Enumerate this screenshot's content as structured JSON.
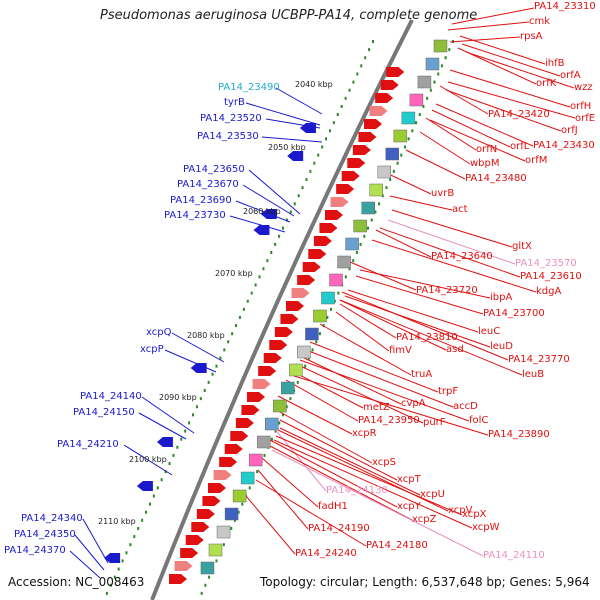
{
  "title": "Pseudomonas aeruginosa UCBPP-PA14, complete genome",
  "footer": {
    "accession": "Accession: NC_008463",
    "topology": "Topology: circular; Length: 6,537,648 bp; Genes: 5,964"
  },
  "colors": {
    "left_label": "#1a1acc",
    "left_label_highlight": "#22aacc",
    "right_label": "#e01010",
    "right_label_light": "#e890c0",
    "backbone": "#777777",
    "tick": "#2a8a2a"
  },
  "scale_labels": [
    "2040 kbp",
    "2050 kbp",
    "2060 kbp",
    "2070 kbp",
    "2080 kbp",
    "2090 kbp",
    "2100 kbp",
    "2110 kbp"
  ],
  "left_labels": [
    {
      "text": "PA14_23490",
      "color": "highlight"
    },
    {
      "text": "tyrB",
      "color": "normal"
    },
    {
      "text": "PA14_23520",
      "color": "normal"
    },
    {
      "text": "PA14_23530",
      "color": "normal"
    },
    {
      "text": "PA14_23650",
      "color": "normal"
    },
    {
      "text": "PA14_23670",
      "color": "normal"
    },
    {
      "text": "PA14_23690",
      "color": "normal"
    },
    {
      "text": "PA14_23730",
      "color": "normal"
    },
    {
      "text": "xcpQ",
      "color": "normal"
    },
    {
      "text": "xcpP",
      "color": "normal"
    },
    {
      "text": "PA14_24140",
      "color": "normal"
    },
    {
      "text": "PA14_24150",
      "color": "normal"
    },
    {
      "text": "PA14_24210",
      "color": "normal"
    },
    {
      "text": "PA14_24340",
      "color": "normal"
    },
    {
      "text": "PA14_24350",
      "color": "normal"
    },
    {
      "text": "PA14_24370",
      "color": "normal"
    }
  ],
  "right_labels": [
    {
      "text": "PA14_23310",
      "color": "normal"
    },
    {
      "text": "cmk",
      "color": "normal"
    },
    {
      "text": "rpsA",
      "color": "normal"
    },
    {
      "text": "ihfB",
      "color": "normal"
    },
    {
      "text": "orfA",
      "color": "normal"
    },
    {
      "text": "orfK",
      "color": "normal"
    },
    {
      "text": "wzz",
      "color": "normal"
    },
    {
      "text": "orfH",
      "color": "normal"
    },
    {
      "text": "PA14_23420",
      "color": "normal"
    },
    {
      "text": "orfE",
      "color": "normal"
    },
    {
      "text": "orfJ",
      "color": "normal"
    },
    {
      "text": "orfN",
      "color": "normal"
    },
    {
      "text": "orfL",
      "color": "normal"
    },
    {
      "text": "PA14_23430",
      "color": "normal"
    },
    {
      "text": "orfM",
      "color": "normal"
    },
    {
      "text": "wbpM",
      "color": "normal"
    },
    {
      "text": "PA14_23480",
      "color": "normal"
    },
    {
      "text": "uvrB",
      "color": "normal"
    },
    {
      "text": "act",
      "color": "normal"
    },
    {
      "text": "gltX",
      "color": "normal"
    },
    {
      "text": "PA14_23640",
      "color": "normal"
    },
    {
      "text": "PA14_23570",
      "color": "light"
    },
    {
      "text": "PA14_23610",
      "color": "normal"
    },
    {
      "text": "kdgA",
      "color": "normal"
    },
    {
      "text": "PA14_23720",
      "color": "normal"
    },
    {
      "text": "ibpA",
      "color": "normal"
    },
    {
      "text": "PA14_23700",
      "color": "normal"
    },
    {
      "text": "leuC",
      "color": "normal"
    },
    {
      "text": "PA14_23810",
      "color": "normal"
    },
    {
      "text": "leuD",
      "color": "normal"
    },
    {
      "text": "fimV",
      "color": "normal"
    },
    {
      "text": "asd",
      "color": "normal"
    },
    {
      "text": "PA14_23770",
      "color": "normal"
    },
    {
      "text": "leuB",
      "color": "normal"
    },
    {
      "text": "truA",
      "color": "normal"
    },
    {
      "text": "trpF",
      "color": "normal"
    },
    {
      "text": "cvpA",
      "color": "normal"
    },
    {
      "text": "accD",
      "color": "normal"
    },
    {
      "text": "metZ",
      "color": "normal"
    },
    {
      "text": "PA14_23950",
      "color": "normal"
    },
    {
      "text": "purF",
      "color": "normal"
    },
    {
      "text": "folC",
      "color": "normal"
    },
    {
      "text": "xcpR",
      "color": "normal"
    },
    {
      "text": "PA14_23890",
      "color": "normal"
    },
    {
      "text": "xcpS",
      "color": "normal"
    },
    {
      "text": "xcpT",
      "color": "normal"
    },
    {
      "text": "PA14_24130",
      "color": "light"
    },
    {
      "text": "xcpU",
      "color": "normal"
    },
    {
      "text": "xcpY",
      "color": "normal"
    },
    {
      "text": "xcpV",
      "color": "normal"
    },
    {
      "text": "fadH1",
      "color": "normal"
    },
    {
      "text": "xcpZ",
      "color": "normal"
    },
    {
      "text": "xcpX",
      "color": "normal"
    },
    {
      "text": "xcpW",
      "color": "normal"
    },
    {
      "text": "PA14_24190",
      "color": "normal"
    },
    {
      "text": "PA14_24180",
      "color": "normal"
    },
    {
      "text": "PA14_24240",
      "color": "normal"
    },
    {
      "text": "PA14_24110",
      "color": "light"
    }
  ]
}
